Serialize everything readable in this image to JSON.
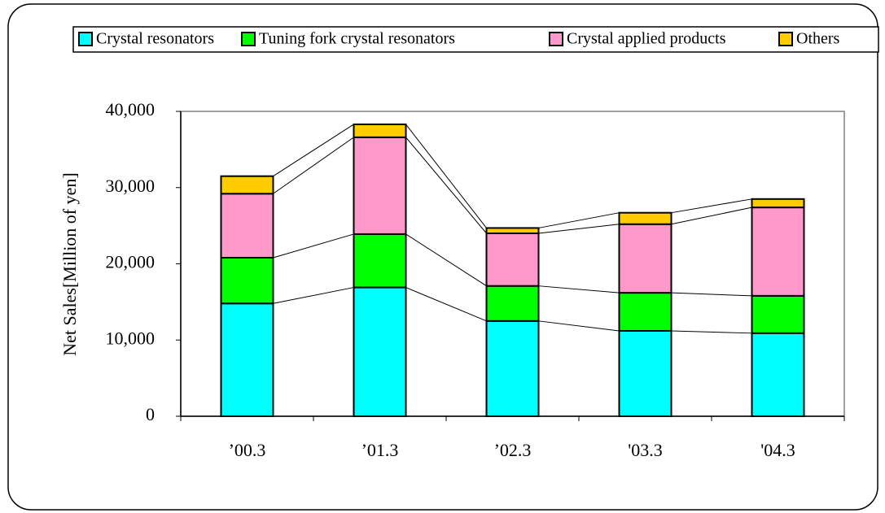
{
  "chart_data": {
    "type": "stacked_bar",
    "y_label": "Net Sales[Million of yen]",
    "categories": [
      "’00.3",
      "’01.3",
      "’02.3",
      "'03.3",
      "'04.3"
    ],
    "series": [
      {
        "name": "Crystal resonators",
        "color": "#00ffff",
        "values": [
          14800,
          16900,
          12500,
          11200,
          10900
        ]
      },
      {
        "name": "Tuning fork crystal resonators",
        "color": "#00ff00",
        "values": [
          6000,
          7000,
          4600,
          5000,
          4900
        ]
      },
      {
        "name": "Crystal applied products",
        "color": "#ff99cc",
        "values": [
          8400,
          12700,
          6900,
          9000,
          11600
        ]
      },
      {
        "name": "Others",
        "color": "#ffcc00",
        "values": [
          2300,
          1700,
          700,
          1500,
          1100
        ]
      }
    ],
    "ylim": [
      0,
      40000
    ],
    "yticks": [
      0,
      {
        "value": 10000,
        "label": "10,000"
      },
      {
        "value": 20000,
        "label": "20,000"
      },
      {
        "value": 30000,
        "label": "30,000"
      },
      {
        "value": 40000,
        "label": "40,000"
      }
    ],
    "legend": "top"
  }
}
